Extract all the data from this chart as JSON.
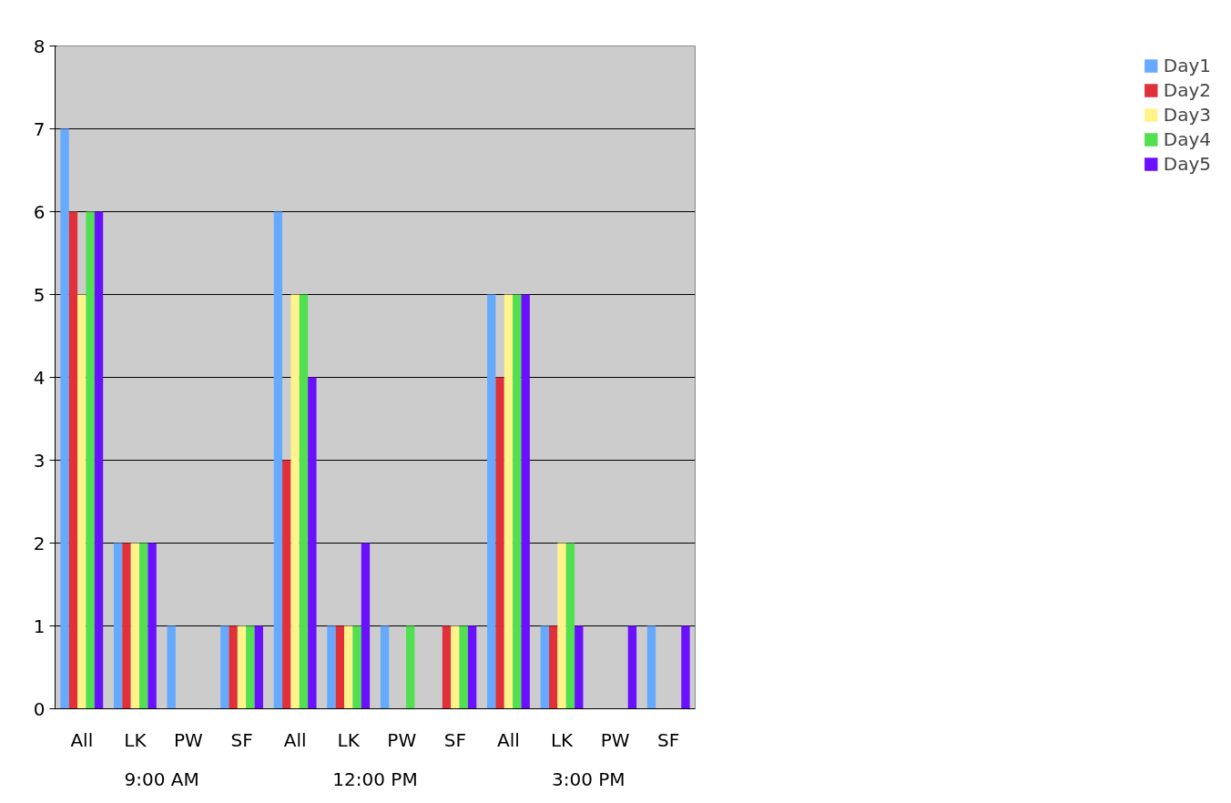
{
  "chart_data": {
    "type": "bar",
    "categories": [
      "All",
      "LK",
      "PW",
      "SF",
      "All",
      "LK",
      "PW",
      "SF",
      "All",
      "LK",
      "PW",
      "SF"
    ],
    "annotations": [
      "9:00 AM",
      "12:00 PM",
      "3:00 PM"
    ],
    "series": [
      {
        "name": "Day1",
        "color": "#66aaff",
        "values": [
          7,
          2,
          1,
          1,
          6,
          1,
          1,
          0,
          5,
          1,
          0,
          1
        ]
      },
      {
        "name": "Day2",
        "color": "#e0303a",
        "values": [
          6,
          2,
          0,
          1,
          3,
          1,
          0,
          1,
          4,
          1,
          0,
          0
        ]
      },
      {
        "name": "Day3",
        "color": "#fff38a",
        "values": [
          5,
          2,
          0,
          1,
          5,
          1,
          0,
          1,
          5,
          2,
          0,
          0
        ]
      },
      {
        "name": "Day4",
        "color": "#50e050",
        "values": [
          6,
          2,
          0,
          1,
          5,
          1,
          1,
          1,
          5,
          2,
          0,
          0
        ]
      },
      {
        "name": "Day5",
        "color": "#6a10ff",
        "values": [
          6,
          2,
          0,
          1,
          4,
          2,
          0,
          1,
          5,
          1,
          1,
          1
        ]
      }
    ],
    "ylim": [
      0,
      8
    ],
    "yticks": [
      0,
      1,
      2,
      3,
      4,
      5,
      6,
      7,
      8
    ],
    "grid": "y",
    "legend": "right"
  }
}
